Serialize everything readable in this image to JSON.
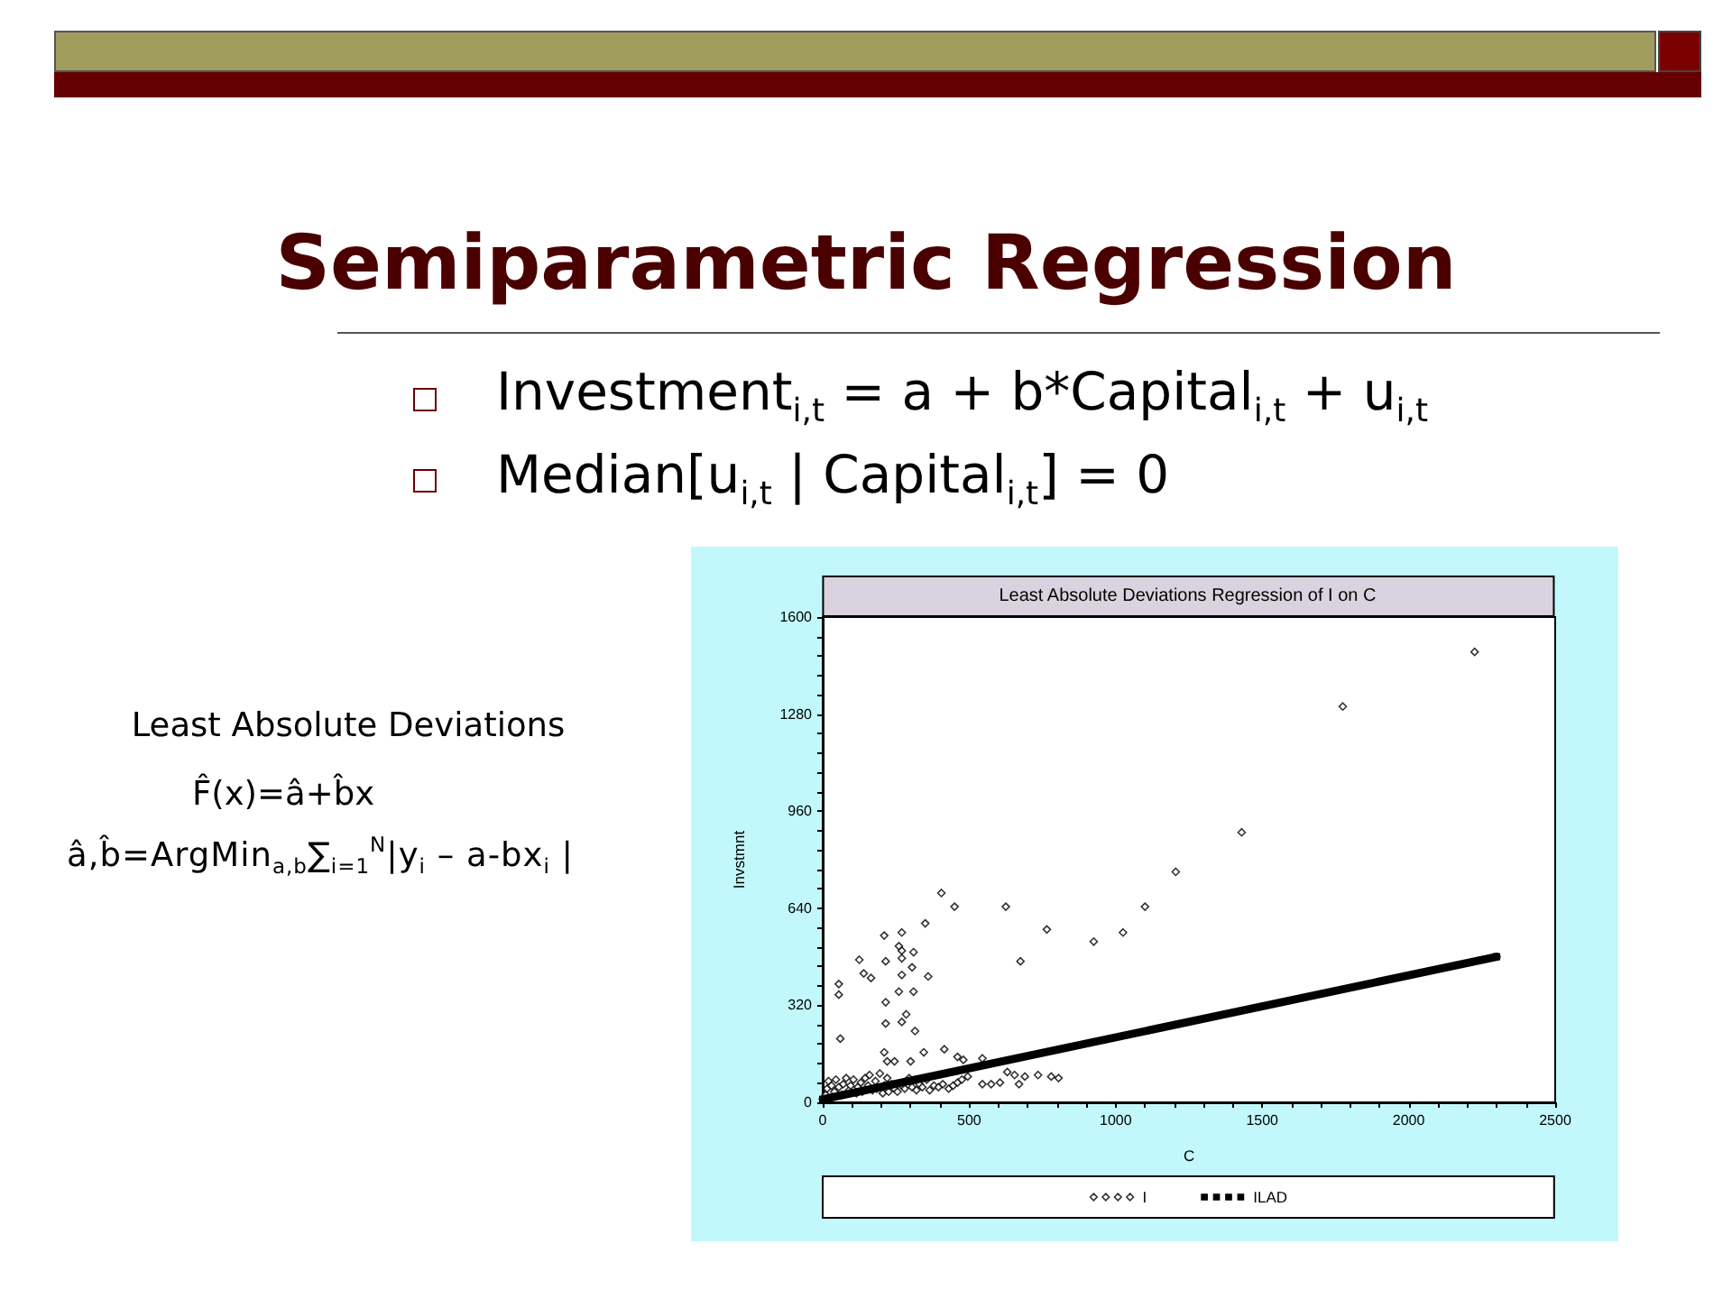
{
  "chart_data": {
    "type": "scatter",
    "title": "Least Absolute Deviations Regression of I on C",
    "xlabel": "C",
    "ylabel": "Invstmnt",
    "annotations": [
      "Semiparametric Regression",
      "Investment$_{i,t}$ = a + b*Capital$_{i,t}$ + u$_{i,t}$",
      "Median[u$_{i,t}$ | Capital$_{i,t}$]  =  0",
      "Least Absolute Deviations",
      "F̂(x)=â+b̂x",
      "â,b̂=ArgMin$_{a,b}$∑$_{i=1}$$^{N}$|y$_{i}$ – a-bx$_{i}$ |"
    ],
    "xlim": [
      0,
      2500
    ],
    "xticks": [
      0,
      {
        "value": 100,
        "label": null
      },
      {
        "value": 200,
        "label": null
      },
      {
        "value": 300,
        "label": null
      },
      {
        "value": 400,
        "label": null
      },
      500,
      {
        "value": 600,
        "label": null
      },
      {
        "value": 700,
        "label": null
      },
      {
        "value": 800,
        "label": null
      },
      {
        "value": 900,
        "label": null
      },
      1000,
      {
        "value": 1100,
        "label": null
      },
      {
        "value": 1200,
        "label": null
      },
      {
        "value": 1300,
        "label": null
      },
      {
        "value": 1400,
        "label": null
      },
      1500,
      {
        "value": 1600,
        "label": null
      },
      {
        "value": 1700,
        "label": null
      },
      {
        "value": 1800,
        "label": null
      },
      {
        "value": 1900,
        "label": null
      },
      2000,
      {
        "value": 2100,
        "label": null
      },
      {
        "value": 2200,
        "label": null
      },
      {
        "value": 2300,
        "label": null
      },
      {
        "value": 2400,
        "label": null
      },
      2500
    ],
    "ylim": [
      0,
      1600
    ],
    "yticks": [
      0,
      {
        "value": 64,
        "label": null
      },
      {
        "value": 128,
        "label": null
      },
      {
        "value": 192,
        "label": null
      },
      {
        "value": 256,
        "label": null
      },
      320,
      {
        "value": 384,
        "label": null
      },
      {
        "value": 448,
        "label": null
      },
      {
        "value": 512,
        "label": null
      },
      {
        "value": 576,
        "label": null
      },
      640,
      {
        "value": 704,
        "label": null
      },
      {
        "value": 768,
        "label": null
      },
      {
        "value": 832,
        "label": null
      },
      {
        "value": 896,
        "label": null
      },
      960,
      {
        "value": 1024,
        "label": null
      },
      {
        "value": 1088,
        "label": null
      },
      {
        "value": 1152,
        "label": null
      },
      {
        "value": 1216,
        "label": null
      },
      1280,
      {
        "value": 1344,
        "label": null
      },
      {
        "value": 1408,
        "label": null
      },
      {
        "value": 1472,
        "label": null
      },
      {
        "value": 1536,
        "label": null
      },
      1600
    ],
    "legend": "bottom",
    "marker": "diamond",
    "series": [
      {
        "name": "I",
        "color": "#000000",
        "x": [
          405,
          450,
          625,
          350,
          765,
          925,
          1025,
          1100,
          1205,
          675,
          210,
          270,
          125,
          215,
          260,
          270,
          270,
          310,
          305,
          360,
          140,
          165,
          270,
          55,
          55,
          260,
          310,
          215,
          285,
          215,
          270,
          315,
          60,
          210,
          345,
          415,
          460,
          545,
          300,
          220,
          545,
          575,
          605,
          630,
          655,
          670,
          690,
          735,
          780,
          805,
          1430,
          1775,
          2225,
          245,
          480,
          10,
          15,
          20,
          30,
          40,
          45,
          55,
          65,
          70,
          80,
          90,
          95,
          105,
          115,
          120,
          130,
          135,
          145,
          155,
          160,
          170,
          180,
          185,
          195,
          205,
          210,
          220,
          225,
          235,
          245,
          255,
          270,
          280,
          295,
          305,
          320,
          330,
          340,
          355,
          365,
          380,
          395,
          410,
          430,
          445,
          460,
          475,
          495
        ],
        "values": [
          690,
          645,
          645,
          590,
          570,
          530,
          560,
          645,
          760,
          465,
          550,
          560,
          470,
          465,
          515,
          500,
          475,
          495,
          445,
          415,
          425,
          410,
          420,
          390,
          355,
          365,
          365,
          330,
          290,
          260,
          265,
          235,
          210,
          165,
          165,
          175,
          150,
          145,
          135,
          135,
          60,
          60,
          65,
          100,
          90,
          60,
          85,
          90,
          85,
          80,
          890,
          1305,
          1485,
          135,
          140,
          25,
          45,
          70,
          55,
          35,
          75,
          50,
          25,
          60,
          80,
          40,
          55,
          75,
          30,
          50,
          65,
          35,
          80,
          55,
          90,
          40,
          70,
          45,
          95,
          30,
          55,
          80,
          35,
          60,
          45,
          35,
          55,
          45,
          80,
          50,
          40,
          60,
          50,
          75,
          40,
          55,
          50,
          60,
          45,
          55,
          65,
          75,
          85
        ]
      },
      {
        "name": "ILAD",
        "type": "line",
        "marker": "square",
        "color": "#000000",
        "x": [
          0,
          2300
        ],
        "values": [
          10,
          480
        ]
      }
    ]
  }
}
